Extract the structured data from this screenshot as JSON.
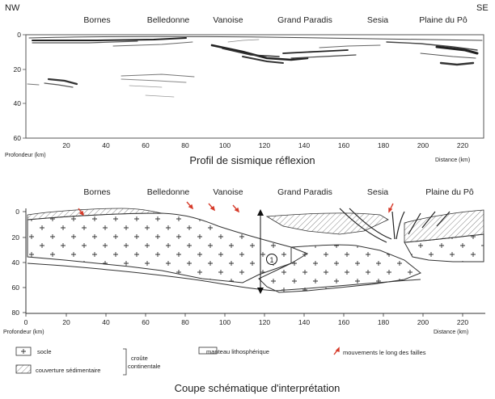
{
  "profile": {
    "corner_left": "NW",
    "corner_right": "SE",
    "regions": [
      "Bornes",
      "Belledonne",
      "Vanoise",
      "Grand Paradis",
      "Sesia",
      "Plaine du Pô"
    ],
    "depth_ticks": [
      "0",
      "20",
      "40",
      "60"
    ],
    "distance_ticks": [
      "20",
      "40",
      "60",
      "80",
      "100",
      "120",
      "140",
      "160",
      "180",
      "200",
      "220"
    ],
    "depth_label": "Profondeur (km)",
    "distance_label": "Distance (km)",
    "caption": "Profil de sismique réflexion"
  },
  "section": {
    "regions": [
      "Bornes",
      "Belledonne",
      "Vanoise",
      "Grand Paradis",
      "Sesia",
      "Plaine du Pô"
    ],
    "depth_ticks": [
      "0",
      "20",
      "40",
      "60",
      "80"
    ],
    "distance_ticks": [
      "0",
      "20",
      "40",
      "60",
      "80",
      "100",
      "120",
      "140",
      "160",
      "180",
      "200",
      "220"
    ],
    "depth_label": "Profondeur (km)",
    "distance_label": "Distance (km)",
    "marker": "1",
    "caption": "Coupe schématique d'interprétation"
  },
  "legend": {
    "socle": "socle",
    "couverture": "couverture sédimentaire",
    "croute_line1": "croûte",
    "croute_line2": "continentale",
    "manteau": "manteau lithosphérique",
    "failles": "mouvements le long des failles"
  }
}
